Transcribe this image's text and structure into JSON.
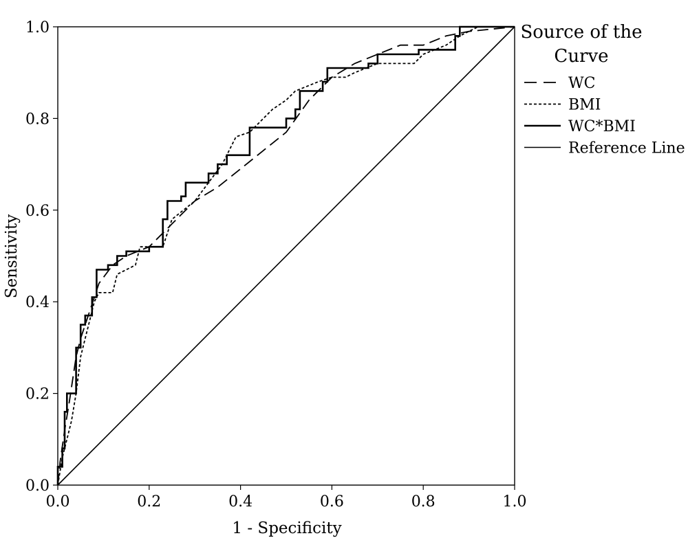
{
  "chart_data": {
    "type": "line",
    "title": "",
    "xlabel": "1 - Specificity",
    "ylabel": "Sensitivity",
    "xlim": [
      0,
      1
    ],
    "ylim": [
      0,
      1
    ],
    "x_ticks": [
      "0.0",
      "0.2",
      "0.4",
      "0.6",
      "0.8",
      "1.0"
    ],
    "y_ticks": [
      "0.0",
      "0.2",
      "0.4",
      "0.6",
      "0.8",
      "1.0"
    ],
    "grid": false,
    "legend": {
      "title_lines": [
        "Source of the",
        "Curve"
      ],
      "placement": "right"
    },
    "series": [
      {
        "name": "WC",
        "style": "dashed",
        "color": "#000000",
        "points": [
          [
            0,
            0
          ],
          [
            0.005,
            0.05
          ],
          [
            0.015,
            0.12
          ],
          [
            0.025,
            0.18
          ],
          [
            0.04,
            0.28
          ],
          [
            0.05,
            0.32
          ],
          [
            0.07,
            0.38
          ],
          [
            0.09,
            0.44
          ],
          [
            0.12,
            0.48
          ],
          [
            0.15,
            0.5
          ],
          [
            0.2,
            0.52
          ],
          [
            0.25,
            0.57
          ],
          [
            0.3,
            0.62
          ],
          [
            0.35,
            0.65
          ],
          [
            0.4,
            0.69
          ],
          [
            0.45,
            0.73
          ],
          [
            0.5,
            0.77
          ],
          [
            0.55,
            0.84
          ],
          [
            0.6,
            0.89
          ],
          [
            0.65,
            0.92
          ],
          [
            0.7,
            0.94
          ],
          [
            0.75,
            0.96
          ],
          [
            0.8,
            0.96
          ],
          [
            0.85,
            0.98
          ],
          [
            0.9,
            0.99
          ],
          [
            1,
            1
          ]
        ]
      },
      {
        "name": "BMI",
        "style": "dotted",
        "color": "#000000",
        "points": [
          [
            0,
            0
          ],
          [
            0.01,
            0.06
          ],
          [
            0.02,
            0.1
          ],
          [
            0.03,
            0.14
          ],
          [
            0.04,
            0.2
          ],
          [
            0.05,
            0.28
          ],
          [
            0.06,
            0.32
          ],
          [
            0.07,
            0.36
          ],
          [
            0.08,
            0.4
          ],
          [
            0.09,
            0.42
          ],
          [
            0.12,
            0.42
          ],
          [
            0.13,
            0.46
          ],
          [
            0.17,
            0.48
          ],
          [
            0.18,
            0.52
          ],
          [
            0.23,
            0.52
          ],
          [
            0.25,
            0.58
          ],
          [
            0.3,
            0.62
          ],
          [
            0.33,
            0.66
          ],
          [
            0.36,
            0.7
          ],
          [
            0.39,
            0.76
          ],
          [
            0.42,
            0.77
          ],
          [
            0.45,
            0.8
          ],
          [
            0.47,
            0.82
          ],
          [
            0.5,
            0.84
          ],
          [
            0.52,
            0.86
          ],
          [
            0.57,
            0.88
          ],
          [
            0.6,
            0.89
          ],
          [
            0.63,
            0.89
          ],
          [
            0.65,
            0.9
          ],
          [
            0.7,
            0.92
          ],
          [
            0.78,
            0.92
          ],
          [
            0.8,
            0.94
          ],
          [
            0.85,
            0.96
          ],
          [
            0.88,
            0.98
          ],
          [
            0.92,
            1.0
          ],
          [
            1,
            1
          ]
        ]
      },
      {
        "name": "WC*BMI",
        "style": "solid-bold",
        "color": "#000000",
        "points": [
          [
            0,
            0
          ],
          [
            0,
            0.04
          ],
          [
            0.01,
            0.04
          ],
          [
            0.01,
            0.08
          ],
          [
            0.015,
            0.08
          ],
          [
            0.015,
            0.16
          ],
          [
            0.02,
            0.16
          ],
          [
            0.02,
            0.2
          ],
          [
            0.04,
            0.2
          ],
          [
            0.04,
            0.3
          ],
          [
            0.05,
            0.3
          ],
          [
            0.05,
            0.35
          ],
          [
            0.06,
            0.35
          ],
          [
            0.06,
            0.37
          ],
          [
            0.075,
            0.37
          ],
          [
            0.075,
            0.41
          ],
          [
            0.085,
            0.41
          ],
          [
            0.085,
            0.47
          ],
          [
            0.11,
            0.47
          ],
          [
            0.11,
            0.48
          ],
          [
            0.13,
            0.48
          ],
          [
            0.13,
            0.5
          ],
          [
            0.15,
            0.5
          ],
          [
            0.15,
            0.51
          ],
          [
            0.2,
            0.51
          ],
          [
            0.2,
            0.52
          ],
          [
            0.23,
            0.52
          ],
          [
            0.23,
            0.58
          ],
          [
            0.24,
            0.58
          ],
          [
            0.24,
            0.62
          ],
          [
            0.27,
            0.62
          ],
          [
            0.27,
            0.63
          ],
          [
            0.28,
            0.63
          ],
          [
            0.28,
            0.66
          ],
          [
            0.33,
            0.66
          ],
          [
            0.33,
            0.68
          ],
          [
            0.35,
            0.68
          ],
          [
            0.35,
            0.7
          ],
          [
            0.37,
            0.7
          ],
          [
            0.37,
            0.72
          ],
          [
            0.42,
            0.72
          ],
          [
            0.42,
            0.78
          ],
          [
            0.5,
            0.78
          ],
          [
            0.5,
            0.8
          ],
          [
            0.52,
            0.8
          ],
          [
            0.52,
            0.82
          ],
          [
            0.53,
            0.82
          ],
          [
            0.53,
            0.86
          ],
          [
            0.58,
            0.86
          ],
          [
            0.58,
            0.88
          ],
          [
            0.59,
            0.88
          ],
          [
            0.59,
            0.91
          ],
          [
            0.68,
            0.91
          ],
          [
            0.68,
            0.92
          ],
          [
            0.7,
            0.92
          ],
          [
            0.7,
            0.94
          ],
          [
            0.79,
            0.94
          ],
          [
            0.79,
            0.95
          ],
          [
            0.87,
            0.95
          ],
          [
            0.87,
            0.98
          ],
          [
            0.88,
            0.98
          ],
          [
            0.88,
            1.0
          ],
          [
            1,
            1
          ]
        ]
      },
      {
        "name": "Reference Line",
        "style": "solid-thin",
        "color": "#000000",
        "points": [
          [
            0,
            0
          ],
          [
            1,
            1
          ]
        ]
      }
    ]
  }
}
